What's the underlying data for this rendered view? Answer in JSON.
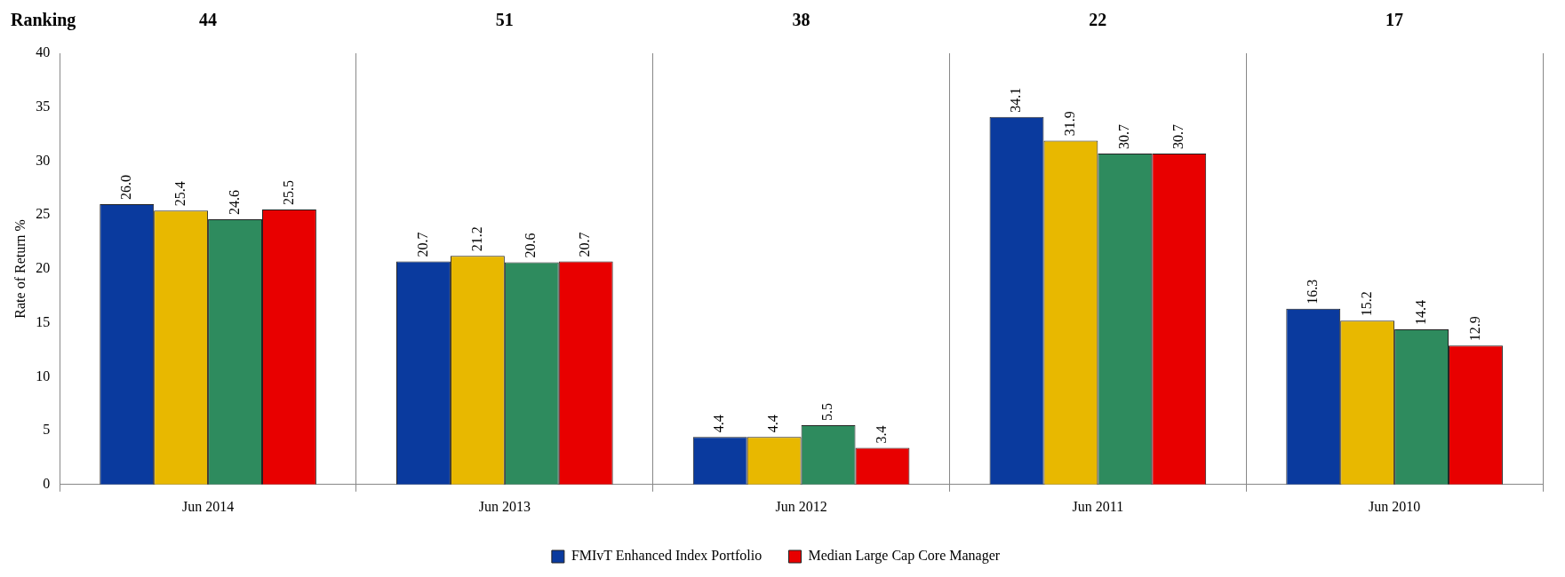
{
  "chart_data": {
    "type": "bar",
    "ylabel": "Rate of Return %",
    "categories": [
      "Jun 2014",
      "Jun 2013",
      "Jun 2012",
      "Jun 2011",
      "Jun 2010"
    ],
    "series": [
      {
        "name": "FMIvT Enhanced Index Portfolio",
        "color": "#0a3a9e",
        "values": [
          26.0,
          20.7,
          4.4,
          34.1,
          16.3
        ],
        "value_labels": [
          "26.0",
          "20.7",
          "4.4",
          "34.1",
          "16.3"
        ]
      },
      {
        "color": "#e8b800",
        "values": [
          25.4,
          21.2,
          4.4,
          31.9,
          15.2
        ],
        "value_labels": [
          "25.4",
          "21.2",
          "4.4",
          "31.9",
          "15.2"
        ]
      },
      {
        "color": "#2e8b5e",
        "values": [
          24.6,
          20.6,
          5.5,
          30.7,
          14.4
        ],
        "value_labels": [
          "24.6",
          "20.6",
          "5.5",
          "30.7",
          "14.4"
        ]
      },
      {
        "name": "Median Large Cap Core Manager",
        "color": "#e80000",
        "values": [
          25.5,
          20.7,
          3.4,
          30.7,
          12.9
        ],
        "value_labels": [
          "25.5",
          "20.7",
          "3.4",
          "30.7",
          "12.9"
        ]
      }
    ],
    "ylim": [
      0,
      40
    ],
    "yticks": [
      0,
      5,
      10,
      15,
      20,
      25,
      30,
      35,
      40
    ],
    "grid": "x",
    "legend": "bottom",
    "annotations": [
      "Ranking",
      "44",
      "51",
      "38",
      "22",
      "17"
    ]
  }
}
